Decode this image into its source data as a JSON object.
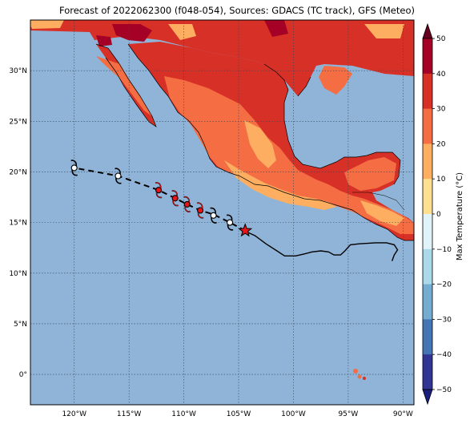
{
  "title": "Forecast of 2022062300 (f048-054), Sources: GDACS (TC track), GFS (Meteo)",
  "map": {
    "lon_range": [
      -124,
      -89
    ],
    "lat_range": [
      -3,
      35
    ],
    "ocean_color": "#8fb4d8",
    "grid": true,
    "lat_ticks": [
      {
        "value": 30,
        "label": "30°N"
      },
      {
        "value": 25,
        "label": "25°N"
      },
      {
        "value": 20,
        "label": "20°N"
      },
      {
        "value": 15,
        "label": "15°N"
      },
      {
        "value": 10,
        "label": "10°N"
      },
      {
        "value": 5,
        "label": "5°N"
      },
      {
        "value": 0,
        "label": "0°"
      }
    ],
    "lon_ticks": [
      {
        "value": -120,
        "label": "120°W"
      },
      {
        "value": -115,
        "label": "115°W"
      },
      {
        "value": -110,
        "label": "110°W"
      },
      {
        "value": -105,
        "label": "105°W"
      },
      {
        "value": -100,
        "label": "100°W"
      },
      {
        "value": -95,
        "label": "95°W"
      },
      {
        "value": -90,
        "label": "90°W"
      }
    ]
  },
  "track": {
    "past": [
      [
        -104.5,
        14.2
      ],
      [
        -103.5,
        13.7
      ],
      [
        -102.5,
        12.9
      ],
      [
        -101.5,
        12.2
      ],
      [
        -100.8,
        11.7
      ],
      [
        -99.8,
        11.7
      ],
      [
        -99,
        11.9
      ],
      [
        -98.3,
        12.1
      ],
      [
        -97.5,
        12.2
      ],
      [
        -96.8,
        12.1
      ],
      [
        -96.3,
        11.8
      ],
      [
        -95.7,
        11.8
      ],
      [
        -95.3,
        12.2
      ],
      [
        -94.8,
        12.8
      ],
      [
        -94,
        12.9
      ],
      [
        -92.5,
        13
      ],
      [
        -91.5,
        13
      ],
      [
        -90.8,
        12.8
      ],
      [
        -90.5,
        12.3
      ],
      [
        -90.8,
        11.8
      ],
      [
        -91,
        11.2
      ]
    ],
    "current_position": [
      -104.4,
      14.2
    ],
    "forecast": [
      [
        -104.4,
        14.2
      ],
      [
        -105.8,
        15.0
      ],
      [
        -107.3,
        15.8
      ],
      [
        -108.5,
        16.2
      ],
      [
        -109.7,
        16.8
      ],
      [
        -110.8,
        17.4
      ],
      [
        -112.3,
        18.2
      ],
      [
        -116,
        19.6
      ],
      [
        -120,
        20.4
      ]
    ],
    "markers": [
      {
        "lon": -105.8,
        "lat": 15.0,
        "color": "#ffffff"
      },
      {
        "lon": -107.3,
        "lat": 15.7,
        "color": "#ffffff"
      },
      {
        "lon": -108.5,
        "lat": 16.2,
        "color": "#e8141a"
      },
      {
        "lon": -109.7,
        "lat": 16.8,
        "color": "#e8141a"
      },
      {
        "lon": -110.8,
        "lat": 17.4,
        "color": "#e8141a"
      },
      {
        "lon": -112.3,
        "lat": 18.2,
        "color": "#e8141a"
      },
      {
        "lon": -116.0,
        "lat": 19.6,
        "color": "#ffffff"
      },
      {
        "lon": -120.0,
        "lat": 20.4,
        "color": "#ffffff"
      }
    ]
  },
  "colorbar": {
    "label": "Max Temperature (°C)",
    "ticks": [
      "50",
      "40",
      "30",
      "20",
      "10",
      "0",
      "−10",
      "−20",
      "−30",
      "−40",
      "−50"
    ],
    "colors": [
      "#67001f",
      "#a50026",
      "#d73027",
      "#f46d43",
      "#fdae61",
      "#fee090",
      "#e0f3f8",
      "#abd9e9",
      "#74add1",
      "#4575b4",
      "#313695",
      "#1a1f80"
    ]
  }
}
